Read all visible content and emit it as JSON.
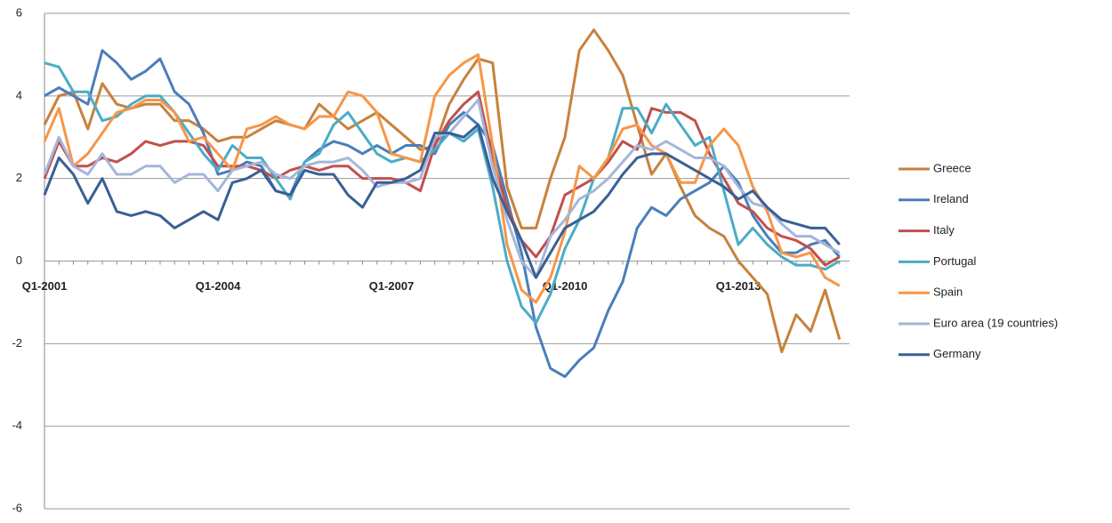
{
  "chart_data": {
    "type": "line",
    "categories": [
      "Q1-2001",
      null,
      null,
      null,
      null,
      null,
      null,
      null,
      null,
      null,
      null,
      null,
      "Q1-2004",
      null,
      null,
      null,
      null,
      null,
      null,
      null,
      null,
      null,
      null,
      null,
      "Q1-2007",
      null,
      null,
      null,
      null,
      null,
      null,
      null,
      null,
      null,
      null,
      null,
      "Q1-2010",
      null,
      null,
      null,
      null,
      null,
      null,
      null,
      null,
      null,
      null,
      null,
      "Q1-2013",
      null,
      null,
      null,
      null,
      null,
      null,
      null
    ],
    "ylim": [
      -6,
      6
    ],
    "yticks": [
      -6,
      -4,
      -2,
      0,
      2,
      4,
      6
    ],
    "grid": true,
    "legend": "right",
    "series": [
      {
        "name": "Greece",
        "color": "#c8813c",
        "values": [
          3.3,
          4.0,
          4.1,
          3.2,
          4.3,
          3.8,
          3.7,
          3.8,
          3.8,
          3.4,
          3.4,
          3.2,
          2.9,
          3.0,
          3.0,
          3.2,
          3.4,
          3.3,
          3.2,
          3.8,
          3.5,
          3.2,
          3.4,
          3.6,
          3.3,
          3.0,
          2.7,
          2.8,
          3.8,
          4.4,
          4.9,
          4.8,
          1.8,
          0.8,
          0.8,
          2.0,
          3.0,
          5.1,
          5.6,
          5.1,
          4.5,
          3.3,
          2.1,
          2.6,
          1.8,
          1.1,
          0.8,
          0.6,
          0.0,
          -0.4,
          -0.8,
          -2.2,
          -1.3,
          -1.7,
          -0.7,
          -1.9
        ]
      },
      {
        "name": "Ireland",
        "color": "#4a7ebb",
        "values": [
          4.0,
          4.2,
          4.0,
          3.8,
          5.1,
          4.8,
          4.4,
          4.6,
          4.9,
          4.1,
          3.8,
          3.1,
          2.1,
          2.2,
          2.4,
          2.3,
          1.7,
          1.6,
          2.4,
          2.7,
          2.9,
          2.8,
          2.6,
          2.8,
          2.6,
          2.8,
          2.8,
          2.6,
          3.3,
          3.6,
          3.3,
          2.8,
          1.5,
          0.2,
          -1.6,
          -2.6,
          -2.8,
          -2.4,
          -2.1,
          -1.2,
          -0.5,
          0.8,
          1.3,
          1.1,
          1.5,
          1.7,
          1.9,
          2.3,
          1.9,
          1.1,
          0.6,
          0.2,
          0.2,
          0.4,
          0.5,
          0.1
        ]
      },
      {
        "name": "Italy",
        "color": "#c0504d",
        "values": [
          2.0,
          2.9,
          2.3,
          2.3,
          2.5,
          2.4,
          2.6,
          2.9,
          2.8,
          2.9,
          2.9,
          2.8,
          2.3,
          2.3,
          2.3,
          2.2,
          2.0,
          2.2,
          2.3,
          2.2,
          2.3,
          2.3,
          2.0,
          2.0,
          2.0,
          1.9,
          1.7,
          2.8,
          3.4,
          3.8,
          4.1,
          2.5,
          1.3,
          0.5,
          0.1,
          0.6,
          1.6,
          1.8,
          2.0,
          2.4,
          2.9,
          2.7,
          3.7,
          3.6,
          3.6,
          3.4,
          2.6,
          2.0,
          1.4,
          1.2,
          0.8,
          0.6,
          0.5,
          0.3,
          -0.1,
          0.1
        ]
      },
      {
        "name": "Portugal",
        "color": "#4bacc6",
        "values": [
          4.8,
          4.7,
          4.1,
          4.1,
          3.4,
          3.5,
          3.8,
          4.0,
          4.0,
          3.6,
          3.1,
          2.6,
          2.2,
          2.8,
          2.5,
          2.5,
          2.0,
          1.5,
          2.4,
          2.6,
          3.3,
          3.6,
          3.1,
          2.6,
          2.4,
          2.5,
          2.4,
          2.7,
          3.1,
          2.9,
          3.2,
          1.8,
          0.0,
          -1.1,
          -1.5,
          -0.8,
          0.3,
          1.0,
          2.0,
          2.5,
          3.7,
          3.7,
          3.1,
          3.8,
          3.3,
          2.8,
          3.0,
          1.7,
          0.4,
          0.8,
          0.4,
          0.1,
          -0.1,
          -0.1,
          -0.2,
          0.0
        ]
      },
      {
        "name": "Spain",
        "color": "#f79646",
        "values": [
          2.9,
          3.7,
          2.3,
          2.6,
          3.1,
          3.6,
          3.7,
          3.9,
          3.9,
          3.6,
          2.9,
          3.0,
          2.6,
          2.2,
          3.2,
          3.3,
          3.5,
          3.3,
          3.2,
          3.5,
          3.5,
          4.1,
          4.0,
          3.6,
          2.6,
          2.5,
          2.4,
          4.0,
          4.5,
          4.8,
          5.0,
          2.8,
          0.4,
          -0.7,
          -1.0,
          -0.4,
          0.7,
          2.3,
          2.0,
          2.5,
          3.2,
          3.3,
          2.8,
          2.6,
          1.9,
          1.9,
          2.8,
          3.2,
          2.8,
          1.8,
          1.2,
          0.2,
          0.1,
          0.2,
          -0.4,
          -0.6
        ]
      },
      {
        "name": "Euro area (19 countries)",
        "color": "#a5b6d9",
        "values": [
          2.1,
          3.0,
          2.3,
          2.1,
          2.6,
          2.1,
          2.1,
          2.3,
          2.3,
          1.9,
          2.1,
          2.1,
          1.7,
          2.2,
          2.3,
          2.4,
          2.1,
          2.0,
          2.3,
          2.4,
          2.4,
          2.5,
          2.2,
          1.8,
          1.9,
          1.9,
          2.0,
          3.0,
          3.1,
          3.5,
          3.9,
          2.3,
          1.0,
          0.0,
          -0.4,
          0.6,
          1.0,
          1.5,
          1.7,
          2.0,
          2.4,
          2.8,
          2.7,
          2.9,
          2.7,
          2.5,
          2.5,
          2.3,
          1.8,
          1.4,
          1.3,
          0.9,
          0.6,
          0.6,
          0.4,
          0.2
        ]
      },
      {
        "name": "Germany",
        "color": "#3a5f95",
        "values": [
          1.6,
          2.5,
          2.1,
          1.4,
          2.0,
          1.2,
          1.1,
          1.2,
          1.1,
          0.8,
          1.0,
          1.2,
          1.0,
          1.9,
          2.0,
          2.2,
          1.7,
          1.6,
          2.2,
          2.1,
          2.1,
          1.6,
          1.3,
          1.9,
          1.9,
          2.0,
          2.2,
          3.1,
          3.1,
          3.0,
          3.3,
          2.0,
          1.2,
          0.5,
          -0.4,
          0.2,
          0.8,
          1.0,
          1.2,
          1.6,
          2.1,
          2.5,
          2.6,
          2.6,
          2.4,
          2.2,
          2.0,
          1.8,
          1.5,
          1.7,
          1.3,
          1.0,
          0.9,
          0.8,
          0.8,
          0.4
        ]
      }
    ]
  }
}
